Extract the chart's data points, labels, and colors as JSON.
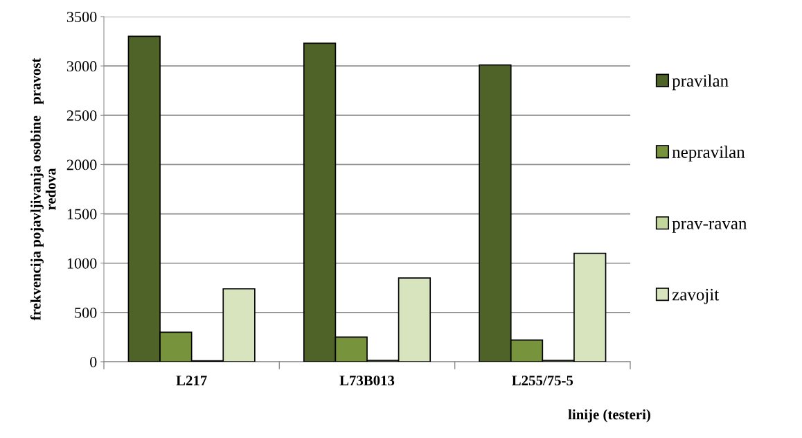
{
  "chart_data": {
    "type": "bar",
    "xlabel": "linije (testeri)",
    "ylabel": "frekvencija pojavljivanja osobine   pravost\nredova",
    "categories": [
      "L217",
      "L73B013",
      "L255/75-5"
    ],
    "series": [
      {
        "name": "pravilan",
        "color": "#4f6228",
        "values": [
          3300,
          3230,
          3010
        ]
      },
      {
        "name": "nepravilan",
        "color": "#77933c",
        "values": [
          300,
          250,
          220
        ]
      },
      {
        "name": "prav-ravan",
        "color": "#c3d69b",
        "values": [
          10,
          15,
          15
        ]
      },
      {
        "name": "zavojit",
        "color": "#d7e4bd",
        "values": [
          740,
          850,
          1100
        ]
      }
    ],
    "ylim": [
      0,
      3500
    ],
    "yticks": [
      0,
      500,
      1000,
      1500,
      2000,
      2500,
      3000,
      3500
    ],
    "grid": "y",
    "legend": "right"
  }
}
